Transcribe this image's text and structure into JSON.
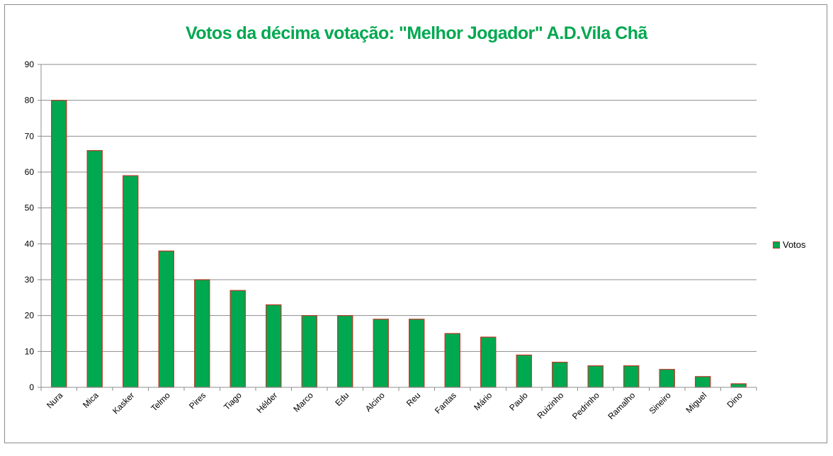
{
  "chart_data": {
    "type": "bar",
    "title": "Votos da décima votação: \"Melhor Jogador\" A.D.Vila Chã",
    "categories": [
      "Nura",
      "Mica",
      "Kasker",
      "Telmo",
      "Pires",
      "Tiago",
      "Hélder",
      "Marco",
      "Edu",
      "Alcino",
      "Reu",
      "Fantas",
      "Mário",
      "Paulo",
      "Ruizinho",
      "Pedrinho",
      "Ramalho",
      "Sineiro",
      "Miguel",
      "Dino"
    ],
    "series": [
      {
        "name": "Votos",
        "values": [
          80,
          66,
          59,
          38,
          30,
          27,
          23,
          20,
          20,
          19,
          19,
          15,
          14,
          9,
          7,
          6,
          6,
          5,
          3,
          1
        ]
      }
    ],
    "ylim": [
      0,
      90
    ],
    "yticks": [
      0,
      10,
      20,
      30,
      40,
      50,
      60,
      70,
      80,
      90
    ],
    "grid": true,
    "legend_position": "right",
    "colors": {
      "bar_fill": "#00a84f",
      "bar_border": "#c0392b",
      "title": "#00a84f",
      "grid": "#8c8c8c"
    }
  }
}
